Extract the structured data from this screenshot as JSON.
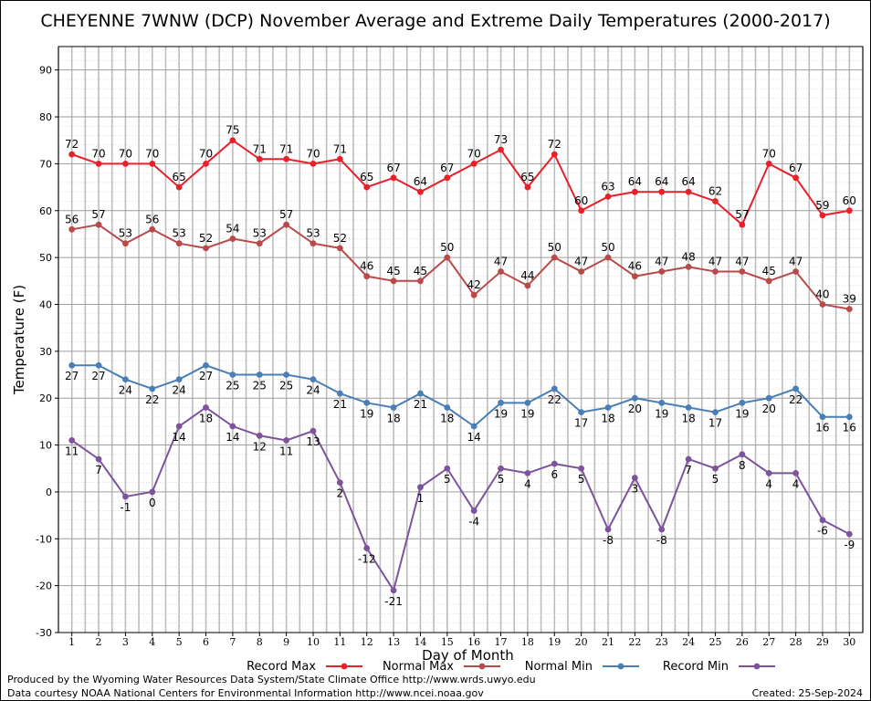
{
  "chart_data": {
    "type": "line",
    "title": "CHEYENNE 7WNW (DCP) November Average and Extreme Daily Temperatures (2000-2017)",
    "xlabel": "Day of Month",
    "ylabel": "Temperature (F)",
    "ylim": [
      -30,
      95
    ],
    "y_ticks": [
      -30,
      -20,
      -10,
      0,
      10,
      20,
      30,
      40,
      50,
      60,
      70,
      80,
      90
    ],
    "grid": true,
    "legend_position": "bottom",
    "x": [
      1,
      2,
      3,
      4,
      5,
      6,
      7,
      8,
      9,
      10,
      11,
      12,
      13,
      14,
      15,
      16,
      17,
      18,
      19,
      20,
      21,
      22,
      23,
      24,
      25,
      26,
      27,
      28,
      29,
      30
    ],
    "series": [
      {
        "name": "Record Max",
        "color": "#e8202a",
        "label_position": "above",
        "values": [
          72,
          70,
          70,
          70,
          65,
          70,
          75,
          71,
          71,
          70,
          71,
          65,
          67,
          64,
          67,
          70,
          73,
          65,
          72,
          60,
          63,
          64,
          64,
          64,
          62,
          57,
          70,
          67,
          59,
          60
        ]
      },
      {
        "name": "Normal Max",
        "color": "#b84a4a",
        "label_position": "above",
        "values": [
          56,
          57,
          53,
          56,
          53,
          52,
          54,
          53,
          57,
          53,
          52,
          46,
          45,
          45,
          50,
          42,
          47,
          44,
          50,
          47,
          50,
          46,
          47,
          48,
          47,
          47,
          45,
          47,
          40,
          39
        ]
      },
      {
        "name": "Normal Min",
        "color": "#4a7fb5",
        "label_position": "below",
        "values": [
          27,
          27,
          24,
          22,
          24,
          27,
          25,
          25,
          25,
          24,
          21,
          19,
          18,
          21,
          18,
          14,
          19,
          19,
          22,
          17,
          18,
          20,
          19,
          18,
          17,
          19,
          20,
          22,
          16,
          16
        ]
      },
      {
        "name": "Record Min",
        "color": "#7d549c",
        "label_position": "below",
        "values": [
          11,
          7,
          -1,
          0,
          14,
          18,
          14,
          12,
          11,
          13,
          2,
          -12,
          -21,
          1,
          5,
          -4,
          5,
          4,
          6,
          5,
          -8,
          3,
          -8,
          7,
          5,
          8,
          4,
          4,
          -6,
          -9
        ]
      }
    ]
  },
  "footer": {
    "left_line1": "Produced by the Wyoming Water Resources Data System/State Climate Office http://www.wrds.uwyo.edu",
    "left_line2": "Data courtesy NOAA National Centers for Environmental Information http://www.ncei.noaa.gov",
    "created": "Created:  25-Sep-2024"
  }
}
